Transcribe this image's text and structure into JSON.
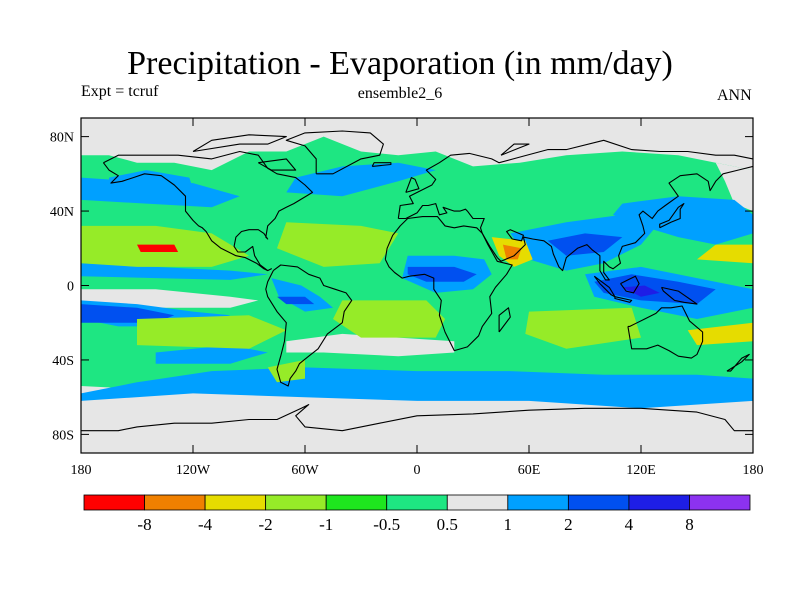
{
  "chart_data": {
    "type": "heatmap",
    "title": "Precipitation - Evaporation (in mm/day)",
    "left_label": "Expt = tcruf",
    "center_label": "ensemble2_6",
    "right_label": "ANN",
    "x_axis": {
      "range": [
        -180,
        180
      ],
      "ticks": [
        {
          "value": -180,
          "label": "180"
        },
        {
          "value": -120,
          "label": "120W"
        },
        {
          "value": -60,
          "label": "60W"
        },
        {
          "value": 0,
          "label": "0"
        },
        {
          "value": 60,
          "label": "60E"
        },
        {
          "value": 120,
          "label": "120E"
        },
        {
          "value": 180,
          "label": "180"
        }
      ]
    },
    "y_axis": {
      "range": [
        -90,
        90
      ],
      "ticks": [
        {
          "value": 80,
          "label": "80N"
        },
        {
          "value": 40,
          "label": "40N"
        },
        {
          "value": 0,
          "label": "0"
        },
        {
          "value": -40,
          "label": "40S"
        },
        {
          "value": -80,
          "label": "80S"
        }
      ]
    },
    "colorbar": {
      "colors": [
        "#ff0000",
        "#f08000",
        "#e6dc00",
        "#96eb28",
        "#1ee61e",
        "#1ee682",
        "#e6e6e6",
        "#00a0ff",
        "#0050f0",
        "#1e1ee6",
        "#8c32f0"
      ],
      "labels": [
        "-8",
        "-4",
        "-2",
        "-1",
        "-0.5",
        "0.5",
        "1",
        "2",
        "4",
        "8"
      ]
    },
    "land_color": "#000000",
    "background_level_color": "#1ee682"
  }
}
